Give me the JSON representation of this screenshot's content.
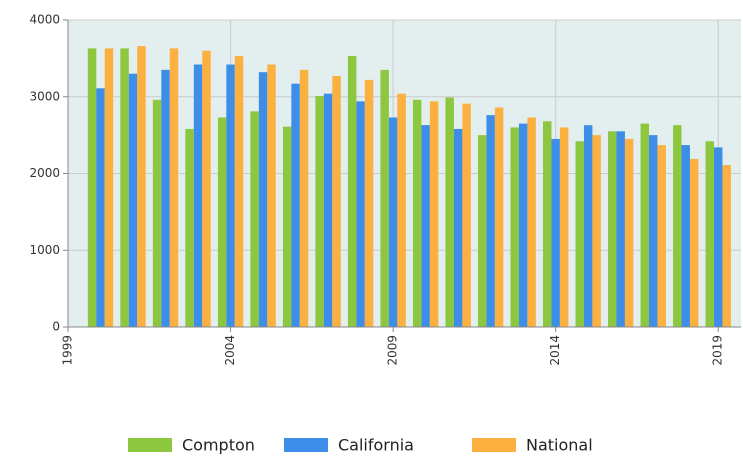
{
  "chart_data": {
    "type": "bar",
    "x": [
      2000,
      2001,
      2002,
      2003,
      2004,
      2005,
      2006,
      2007,
      2008,
      2009,
      2010,
      2011,
      2012,
      2013,
      2014,
      2015,
      2016,
      2017,
      2018,
      2019
    ],
    "series": [
      {
        "name": "Compton",
        "color": "#8dc63f",
        "values": [
          3630,
          3630,
          2960,
          2580,
          2730,
          2810,
          2610,
          3010,
          3530,
          3350,
          2960,
          2990,
          2500,
          2600,
          2680,
          2420,
          2550,
          2650,
          2630,
          2420
        ]
      },
      {
        "name": "California",
        "color": "#3d8ee8",
        "values": [
          3110,
          3300,
          3350,
          3420,
          3420,
          3320,
          3170,
          3040,
          2940,
          2730,
          2630,
          2580,
          2760,
          2650,
          2450,
          2630,
          2550,
          2500,
          2370,
          2340
        ]
      },
      {
        "name": "National",
        "color": "#fbb040",
        "values": [
          3630,
          3660,
          3630,
          3600,
          3530,
          3420,
          3350,
          3270,
          3220,
          3040,
          2940,
          2910,
          2860,
          2730,
          2600,
          2500,
          2450,
          2370,
          2190,
          2110
        ]
      }
    ],
    "xlim": [
      1999,
      2019.7
    ],
    "xticks": [
      1999,
      2004,
      2009,
      2014,
      2019
    ],
    "ylim": [
      0,
      4000
    ],
    "yticks": [
      0,
      1000,
      2000,
      3000,
      4000
    ],
    "grid": true,
    "legend": "bottom"
  }
}
